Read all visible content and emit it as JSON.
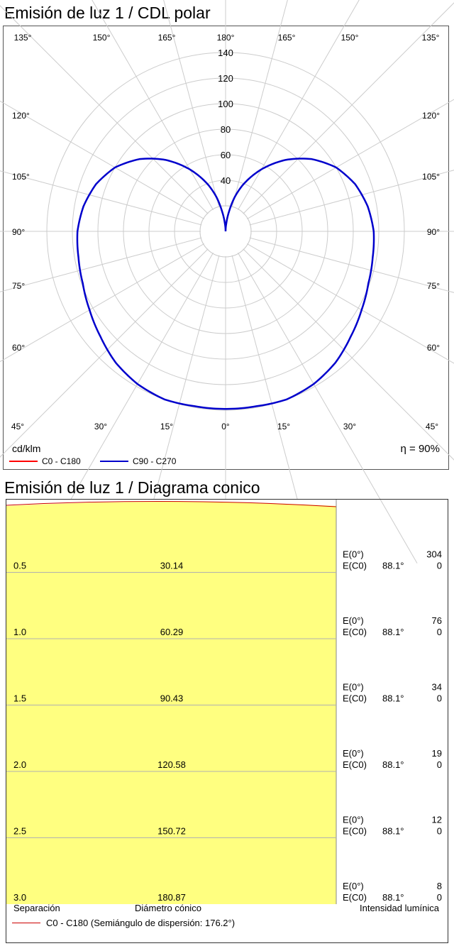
{
  "chart_data": [
    {
      "type": "polar",
      "title": "Emisión de luz 1 / CDL polar",
      "unit_label": "cd/klm",
      "efficiency_label": "η = 90%",
      "radial_ticks": [
        20,
        40,
        60,
        80,
        100,
        120,
        140
      ],
      "radial_tick_labels": [
        "40",
        "60",
        "80",
        "100",
        "120",
        "140"
      ],
      "rlim": [
        0,
        140
      ],
      "angle_labels": {
        "top": [
          "135°",
          "150°",
          "165°",
          "180°",
          "165°",
          "150°",
          "135°"
        ],
        "left": [
          "120°",
          "105°",
          "90°",
          "75°",
          "60°"
        ],
        "right": [
          "120°",
          "105°",
          "90°",
          "75°",
          "60°"
        ],
        "bottom": [
          "45°",
          "30°",
          "15°",
          "0°",
          "15°",
          "30°",
          "45°"
        ]
      },
      "grid": true,
      "series": [
        {
          "name": "C0 - C180",
          "color": "#ff0000",
          "angles_deg": [
            0,
            15,
            30,
            45,
            60,
            70,
            80,
            90,
            100,
            110,
            120,
            130,
            140,
            150,
            160,
            165,
            170,
            175,
            180
          ],
          "values": [
            0,
            0,
            0,
            0,
            0,
            0,
            0,
            0,
            0,
            0,
            0,
            0,
            0,
            0,
            0,
            0,
            0,
            0,
            0
          ]
        },
        {
          "name": "C90 - C270",
          "color": "#0000cc",
          "angles_deg": [
            0,
            10,
            20,
            30,
            40,
            50,
            60,
            70,
            80,
            90,
            100,
            110,
            120,
            130,
            140,
            150,
            160,
            165,
            170,
            175,
            180
          ],
          "values": [
            139,
            139,
            140,
            138,
            134,
            128,
            123,
            119,
            117,
            116,
            113,
            108,
            100,
            88,
            73,
            56,
            38,
            28,
            16,
            6,
            0
          ]
        }
      ]
    },
    {
      "type": "table",
      "title": "Emisión de luz 1 / Diagrama conico",
      "columns": [
        "Separación",
        "Diámetro cónico",
        "Intensidad lumínica"
      ],
      "rows": [
        {
          "sep": "0.5",
          "diam": "30.14",
          "e0_label": "E(0°)",
          "e0": "304",
          "ec0_label": "E(C0)",
          "ang": "88.1°",
          "ec0": "0"
        },
        {
          "sep": "1.0",
          "diam": "60.29",
          "e0_label": "E(0°)",
          "e0": "76",
          "ec0_label": "E(C0)",
          "ang": "88.1°",
          "ec0": "0"
        },
        {
          "sep": "1.5",
          "diam": "90.43",
          "e0_label": "E(0°)",
          "e0": "34",
          "ec0_label": "E(C0)",
          "ang": "88.1°",
          "ec0": "0"
        },
        {
          "sep": "2.0",
          "diam": "120.58",
          "e0_label": "E(0°)",
          "e0": "19",
          "ec0_label": "E(C0)",
          "ang": "88.1°",
          "ec0": "0"
        },
        {
          "sep": "2.5",
          "diam": "150.72",
          "e0_label": "E(0°)",
          "e0": "12",
          "ec0_label": "E(C0)",
          "ang": "88.1°",
          "ec0": "0"
        },
        {
          "sep": "3.0",
          "diam": "180.87",
          "e0_label": "E(0°)",
          "e0": "8",
          "ec0_label": "E(C0)",
          "ang": "88.1°",
          "ec0": "0"
        }
      ],
      "legend": {
        "label": "C0 - C180 (Semiángulo de dispersión: 176.2°)",
        "color": "#cc0000"
      },
      "fill_color": "#ffff80"
    }
  ]
}
